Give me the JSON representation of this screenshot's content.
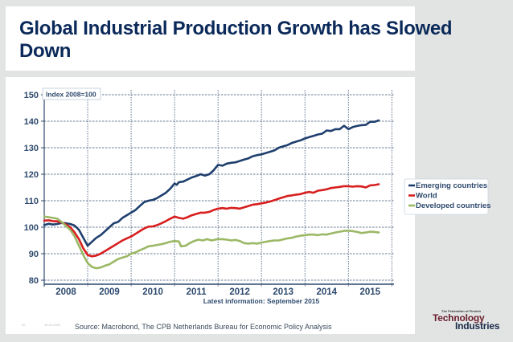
{
  "slide": {
    "title": "Global Industrial Production Growth has Slowed Down",
    "source": "Source: Macrobond, The CPB Netherlands Bureau for Economic Policy Analysis",
    "slide_number": "20",
    "date": "16.10.2015",
    "logo": {
      "small": "The Federation of Finnish",
      "line1": "Technology",
      "line2": "Industries"
    },
    "colors": {
      "background": "#e2e4e3",
      "title": "#0b2a5a",
      "axis_text": "#2e4a6e"
    }
  },
  "chart_data": {
    "type": "line",
    "title": "",
    "annotation": "Index 2008=100",
    "note": "Latest information: September 2015",
    "xlabel": "",
    "ylabel": "",
    "ylim": [
      80,
      150
    ],
    "yticks": [
      80,
      90,
      100,
      110,
      120,
      130,
      140,
      150
    ],
    "xlim": [
      2008.0,
      2016.05
    ],
    "xtick_labels": [
      "2008",
      "2009",
      "2010",
      "2011",
      "2012",
      "2013",
      "2014",
      "2015"
    ],
    "grid": true,
    "legend_position": "right",
    "series": [
      {
        "name": "Emerging countries",
        "color": "#1f3f6e",
        "points": [
          [
            2008.0,
            100.8
          ],
          [
            2008.1,
            101.3
          ],
          [
            2008.2,
            101.0
          ],
          [
            2008.3,
            101.2
          ],
          [
            2008.4,
            101.6
          ],
          [
            2008.5,
            101.5
          ],
          [
            2008.6,
            101.2
          ],
          [
            2008.7,
            100.6
          ],
          [
            2008.8,
            99.0
          ],
          [
            2008.9,
            96.0
          ],
          [
            2009.0,
            93.0
          ],
          [
            2009.1,
            94.5
          ],
          [
            2009.2,
            96.0
          ],
          [
            2009.3,
            97.0
          ],
          [
            2009.4,
            98.5
          ],
          [
            2009.5,
            100.0
          ],
          [
            2009.6,
            101.5
          ],
          [
            2009.7,
            102.0
          ],
          [
            2009.8,
            103.5
          ],
          [
            2009.9,
            104.5
          ],
          [
            2010.0,
            105.5
          ],
          [
            2010.1,
            106.5
          ],
          [
            2010.2,
            108.0
          ],
          [
            2010.3,
            109.5
          ],
          [
            2010.4,
            110.0
          ],
          [
            2010.5,
            110.3
          ],
          [
            2010.6,
            111.0
          ],
          [
            2010.7,
            112.0
          ],
          [
            2010.8,
            113.0
          ],
          [
            2010.9,
            114.5
          ],
          [
            2011.0,
            116.5
          ],
          [
            2011.05,
            116.0
          ],
          [
            2011.1,
            117.0
          ],
          [
            2011.2,
            117.2
          ],
          [
            2011.3,
            118.0
          ],
          [
            2011.4,
            118.8
          ],
          [
            2011.5,
            119.3
          ],
          [
            2011.6,
            120.0
          ],
          [
            2011.7,
            119.5
          ],
          [
            2011.8,
            120.0
          ],
          [
            2011.9,
            121.5
          ],
          [
            2012.0,
            123.5
          ],
          [
            2012.1,
            123.2
          ],
          [
            2012.2,
            124.0
          ],
          [
            2012.3,
            124.3
          ],
          [
            2012.4,
            124.5
          ],
          [
            2012.5,
            125.0
          ],
          [
            2012.6,
            125.5
          ],
          [
            2012.7,
            126.0
          ],
          [
            2012.8,
            126.8
          ],
          [
            2012.9,
            127.2
          ],
          [
            2013.0,
            127.5
          ],
          [
            2013.1,
            128.0
          ],
          [
            2013.2,
            128.5
          ],
          [
            2013.3,
            129.0
          ],
          [
            2013.4,
            130.0
          ],
          [
            2013.5,
            130.5
          ],
          [
            2013.6,
            131.0
          ],
          [
            2013.7,
            131.8
          ],
          [
            2013.8,
            132.3
          ],
          [
            2013.9,
            132.8
          ],
          [
            2014.0,
            133.5
          ],
          [
            2014.1,
            134.0
          ],
          [
            2014.2,
            134.5
          ],
          [
            2014.3,
            135.0
          ],
          [
            2014.4,
            135.3
          ],
          [
            2014.5,
            136.5
          ],
          [
            2014.6,
            136.3
          ],
          [
            2014.7,
            137.0
          ],
          [
            2014.8,
            137.0
          ],
          [
            2014.9,
            138.3
          ],
          [
            2015.0,
            137.0
          ],
          [
            2015.1,
            137.8
          ],
          [
            2015.2,
            138.2
          ],
          [
            2015.3,
            138.5
          ],
          [
            2015.4,
            138.6
          ],
          [
            2015.5,
            139.8
          ],
          [
            2015.6,
            139.8
          ],
          [
            2015.7,
            140.3
          ]
        ]
      },
      {
        "name": "World",
        "color": "#d81e1e",
        "points": [
          [
            2008.0,
            102.5
          ],
          [
            2008.1,
            102.6
          ],
          [
            2008.2,
            102.3
          ],
          [
            2008.3,
            102.2
          ],
          [
            2008.4,
            101.8
          ],
          [
            2008.5,
            101.0
          ],
          [
            2008.6,
            100.0
          ],
          [
            2008.7,
            98.0
          ],
          [
            2008.8,
            95.5
          ],
          [
            2008.9,
            92.0
          ],
          [
            2009.0,
            89.5
          ],
          [
            2009.1,
            89.0
          ],
          [
            2009.2,
            89.3
          ],
          [
            2009.3,
            90.0
          ],
          [
            2009.4,
            91.0
          ],
          [
            2009.5,
            92.0
          ],
          [
            2009.6,
            93.0
          ],
          [
            2009.7,
            94.0
          ],
          [
            2009.8,
            95.0
          ],
          [
            2009.9,
            95.8
          ],
          [
            2010.0,
            96.5
          ],
          [
            2010.1,
            97.5
          ],
          [
            2010.2,
            98.5
          ],
          [
            2010.3,
            99.5
          ],
          [
            2010.4,
            100.2
          ],
          [
            2010.5,
            100.3
          ],
          [
            2010.6,
            100.8
          ],
          [
            2010.7,
            101.5
          ],
          [
            2010.8,
            102.3
          ],
          [
            2010.9,
            103.2
          ],
          [
            2011.0,
            104.0
          ],
          [
            2011.1,
            103.5
          ],
          [
            2011.2,
            103.2
          ],
          [
            2011.3,
            103.8
          ],
          [
            2011.4,
            104.5
          ],
          [
            2011.5,
            105.0
          ],
          [
            2011.6,
            105.5
          ],
          [
            2011.7,
            105.5
          ],
          [
            2011.8,
            105.8
          ],
          [
            2011.9,
            106.5
          ],
          [
            2012.0,
            107.0
          ],
          [
            2012.1,
            107.2
          ],
          [
            2012.2,
            107.0
          ],
          [
            2012.3,
            107.3
          ],
          [
            2012.4,
            107.2
          ],
          [
            2012.5,
            107.0
          ],
          [
            2012.6,
            107.5
          ],
          [
            2012.7,
            108.0
          ],
          [
            2012.8,
            108.5
          ],
          [
            2012.9,
            108.7
          ],
          [
            2013.0,
            109.0
          ],
          [
            2013.1,
            109.3
          ],
          [
            2013.2,
            109.7
          ],
          [
            2013.3,
            110.2
          ],
          [
            2013.4,
            110.8
          ],
          [
            2013.5,
            111.3
          ],
          [
            2013.6,
            111.8
          ],
          [
            2013.7,
            112.0
          ],
          [
            2013.8,
            112.3
          ],
          [
            2013.9,
            112.5
          ],
          [
            2014.0,
            113.0
          ],
          [
            2014.1,
            113.3
          ],
          [
            2014.2,
            113.0
          ],
          [
            2014.3,
            113.8
          ],
          [
            2014.4,
            114.0
          ],
          [
            2014.5,
            114.3
          ],
          [
            2014.6,
            114.8
          ],
          [
            2014.7,
            115.0
          ],
          [
            2014.8,
            115.2
          ],
          [
            2014.9,
            115.5
          ],
          [
            2015.0,
            115.5
          ],
          [
            2015.1,
            115.3
          ],
          [
            2015.2,
            115.5
          ],
          [
            2015.3,
            115.4
          ],
          [
            2015.4,
            115.0
          ],
          [
            2015.5,
            115.8
          ],
          [
            2015.6,
            115.9
          ],
          [
            2015.7,
            116.2
          ]
        ]
      },
      {
        "name": "Developed countries",
        "color": "#9bb865",
        "points": [
          [
            2008.0,
            104.0
          ],
          [
            2008.1,
            103.8
          ],
          [
            2008.2,
            103.5
          ],
          [
            2008.3,
            103.2
          ],
          [
            2008.4,
            102.0
          ],
          [
            2008.5,
            100.5
          ],
          [
            2008.6,
            99.0
          ],
          [
            2008.7,
            96.5
          ],
          [
            2008.8,
            93.0
          ],
          [
            2008.9,
            89.5
          ],
          [
            2009.0,
            86.5
          ],
          [
            2009.1,
            85.0
          ],
          [
            2009.2,
            84.5
          ],
          [
            2009.3,
            84.8
          ],
          [
            2009.4,
            85.5
          ],
          [
            2009.5,
            86.0
          ],
          [
            2009.6,
            87.0
          ],
          [
            2009.7,
            88.0
          ],
          [
            2009.8,
            88.5
          ],
          [
            2009.9,
            89.0
          ],
          [
            2010.0,
            90.0
          ],
          [
            2010.1,
            90.5
          ],
          [
            2010.2,
            91.3
          ],
          [
            2010.3,
            92.0
          ],
          [
            2010.4,
            92.8
          ],
          [
            2010.5,
            93.0
          ],
          [
            2010.6,
            93.3
          ],
          [
            2010.7,
            93.6
          ],
          [
            2010.8,
            94.0
          ],
          [
            2010.9,
            94.5
          ],
          [
            2011.0,
            94.8
          ],
          [
            2011.1,
            94.6
          ],
          [
            2011.15,
            92.8
          ],
          [
            2011.25,
            93.0
          ],
          [
            2011.35,
            94.0
          ],
          [
            2011.45,
            94.8
          ],
          [
            2011.55,
            95.3
          ],
          [
            2011.65,
            95.0
          ],
          [
            2011.75,
            95.5
          ],
          [
            2011.85,
            95.0
          ],
          [
            2012.0,
            95.5
          ],
          [
            2012.1,
            95.5
          ],
          [
            2012.2,
            95.3
          ],
          [
            2012.3,
            95.0
          ],
          [
            2012.4,
            95.2
          ],
          [
            2012.5,
            94.8
          ],
          [
            2012.6,
            94.0
          ],
          [
            2012.7,
            93.8
          ],
          [
            2012.8,
            94.0
          ],
          [
            2012.9,
            93.8
          ],
          [
            2013.0,
            94.2
          ],
          [
            2013.1,
            94.5
          ],
          [
            2013.2,
            94.8
          ],
          [
            2013.3,
            95.0
          ],
          [
            2013.4,
            95.0
          ],
          [
            2013.5,
            95.4
          ],
          [
            2013.6,
            95.8
          ],
          [
            2013.7,
            96.0
          ],
          [
            2013.8,
            96.5
          ],
          [
            2013.9,
            96.8
          ],
          [
            2014.0,
            97.0
          ],
          [
            2014.1,
            97.2
          ],
          [
            2014.2,
            97.2
          ],
          [
            2014.3,
            97.0
          ],
          [
            2014.4,
            97.3
          ],
          [
            2014.5,
            97.2
          ],
          [
            2014.6,
            97.6
          ],
          [
            2014.7,
            98.0
          ],
          [
            2014.8,
            98.3
          ],
          [
            2014.9,
            98.6
          ],
          [
            2015.0,
            98.7
          ],
          [
            2015.1,
            98.5
          ],
          [
            2015.2,
            98.2
          ],
          [
            2015.3,
            97.8
          ],
          [
            2015.4,
            98.0
          ],
          [
            2015.5,
            98.3
          ],
          [
            2015.6,
            98.2
          ],
          [
            2015.7,
            98.0
          ]
        ]
      }
    ]
  }
}
